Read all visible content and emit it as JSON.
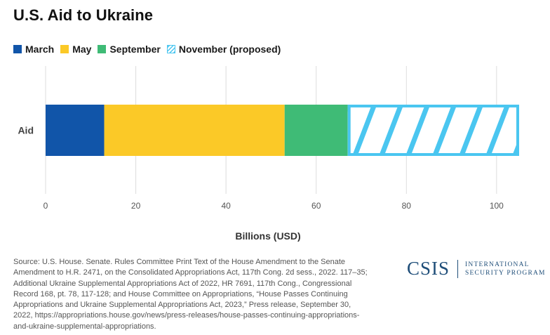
{
  "chart_data": {
    "type": "bar",
    "orientation": "horizontal",
    "stacked": true,
    "title": "U.S. Aid to Ukraine",
    "xlabel": "Billions (USD)",
    "ylabel": "",
    "categories": [
      "Aid"
    ],
    "xlim": [
      0,
      105
    ],
    "xticks": [
      0,
      20,
      40,
      60,
      80,
      100
    ],
    "grid": "vertical",
    "legend_position": "top-left",
    "series": [
      {
        "name": "March",
        "values": [
          13
        ],
        "color": "#1155a9",
        "pattern": "solid"
      },
      {
        "name": "May",
        "values": [
          40
        ],
        "color": "#fbc927",
        "pattern": "solid"
      },
      {
        "name": "September",
        "values": [
          14
        ],
        "color": "#3fbb76",
        "pattern": "solid"
      },
      {
        "name": "November (proposed)",
        "values": [
          38
        ],
        "color": "#4ac6f0",
        "pattern": "hatched"
      }
    ]
  },
  "source_note": "Source: U.S. House. Senate. Rules Committee Print Text of the House Amendment to the Senate Amendment to H.R. 2471, on the Consolidated Appropriations Act, 117th Cong. 2d sess., 2022. 117–35; Additional Ukraine Supplemental Appropriations Act of 2022, HR 7691, 117th Cong., Congressional Record 168, pt. 78, 117-128; and House Committee on Appropriations, “House Passes Continuing Appropriations and Ukraine Supplemental Appropriations Act, 2023,” Press release, September 30, 2022, https://appropriations.house.gov/news/press-releases/house-passes-continuing-appropriations-and-ukraine-supplemental-appropriations.",
  "logo": {
    "mark": "CSIS",
    "line1": "INTERNATIONAL",
    "line2": "SECURITY PROGRAM"
  }
}
